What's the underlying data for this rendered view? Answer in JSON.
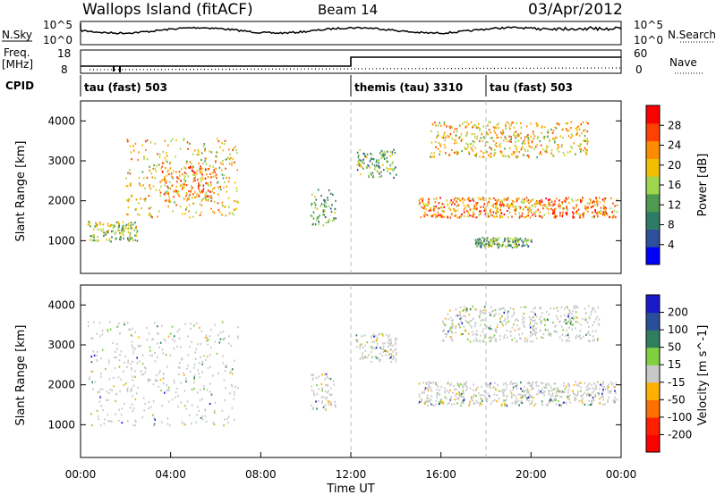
{
  "header": {
    "site": "Wallops Island (fitACF)",
    "beam": "Beam 14",
    "date": "03/Apr/2012"
  },
  "noise_panel": {
    "left_label": "N.Sky",
    "right_label": "N.Search",
    "left_ticks": [
      "10^5",
      "10^0"
    ],
    "right_ticks": [
      "10^5",
      "10^0"
    ]
  },
  "freq_panel": {
    "left_label_line1": "Freq.",
    "left_label_line2": "[MHz]",
    "right_label": "Nave",
    "left_ticks": [
      "18",
      "8"
    ],
    "right_ticks": [
      "60",
      "0"
    ]
  },
  "cpid_panel": {
    "label": "CPID",
    "segments": [
      {
        "text": "tau (fast) 503",
        "start_hour": 0
      },
      {
        "text": "themis (tau) 3310",
        "start_hour": 12
      },
      {
        "text": "tau (fast) 503",
        "start_hour": 18
      }
    ]
  },
  "colors": {
    "power_scale": [
      "#0000ff",
      "#2e4f9c",
      "#2f7c66",
      "#4f9a4f",
      "#9fd64f",
      "#f0c000",
      "#ff8c00",
      "#ff4000",
      "#ff0000"
    ],
    "velocity_scale": [
      "#1a1acc",
      "#2a4f9a",
      "#2f7f5f",
      "#7fcf3f",
      "#c8c8c8",
      "#ffb000",
      "#ff7000",
      "#ff2000",
      "#ff0000"
    ]
  },
  "chart_data": [
    {
      "type": "heatmap",
      "title": "",
      "xlabel": "Time UT",
      "ylabel": "Slant Range [km]",
      "colorbar_label": "Power [dB]",
      "colorbar_ticks": [
        "28",
        "24",
        "20",
        "16",
        "12",
        "8",
        "4"
      ],
      "xlim": [
        0,
        24
      ],
      "ylim": [
        180,
        4500
      ],
      "yticks": [
        "1000",
        "2000",
        "3000",
        "4000"
      ],
      "echo_regions": [
        {
          "t0": 0.3,
          "t1": 2.5,
          "r0": 1000,
          "r1": 1500,
          "power": 14
        },
        {
          "t0": 2.0,
          "t1": 7.0,
          "r0": 1600,
          "r1": 3600,
          "power": 20
        },
        {
          "t0": 3.5,
          "t1": 6.0,
          "r0": 2000,
          "r1": 2900,
          "power": 22
        },
        {
          "t0": 10.2,
          "t1": 11.3,
          "r0": 1400,
          "r1": 2300,
          "power": 10
        },
        {
          "t0": 12.2,
          "t1": 14.0,
          "r0": 2600,
          "r1": 3300,
          "power": 10
        },
        {
          "t0": 15.0,
          "t1": 23.8,
          "r0": 1600,
          "r1": 2100,
          "power": 24
        },
        {
          "t0": 15.5,
          "t1": 22.5,
          "r0": 3100,
          "r1": 4000,
          "power": 18
        },
        {
          "t0": 17.5,
          "t1": 20.0,
          "r0": 850,
          "r1": 1100,
          "power": 12
        }
      ]
    },
    {
      "type": "heatmap",
      "title": "",
      "xlabel": "Time UT",
      "ylabel": "Slant Range [km]",
      "colorbar_label": "Velocity [m s^-1]",
      "colorbar_ticks": [
        "200",
        "100",
        "50",
        "15",
        "-15",
        "-50",
        "-100",
        "-200"
      ],
      "xlim": [
        0,
        24
      ],
      "ylim": [
        180,
        4500
      ],
      "yticks": [
        "1000",
        "2000",
        "3000",
        "4000"
      ],
      "xticks": [
        "00:00",
        "04:00",
        "08:00",
        "12:00",
        "16:00",
        "20:00",
        "00:00"
      ],
      "echo_regions": [
        {
          "t0": 0.3,
          "t1": 7.0,
          "r0": 1000,
          "r1": 3600,
          "velocity": 0
        },
        {
          "t0": 10.2,
          "t1": 11.3,
          "r0": 1400,
          "r1": 2300,
          "velocity": 0
        },
        {
          "t0": 12.2,
          "t1": 14.0,
          "r0": 2600,
          "r1": 3300,
          "velocity": 0
        },
        {
          "t0": 15.0,
          "t1": 23.8,
          "r0": 1500,
          "r1": 2100,
          "velocity": 0
        },
        {
          "t0": 16.0,
          "t1": 23.0,
          "r0": 3100,
          "r1": 4000,
          "velocity": 0
        }
      ]
    }
  ]
}
